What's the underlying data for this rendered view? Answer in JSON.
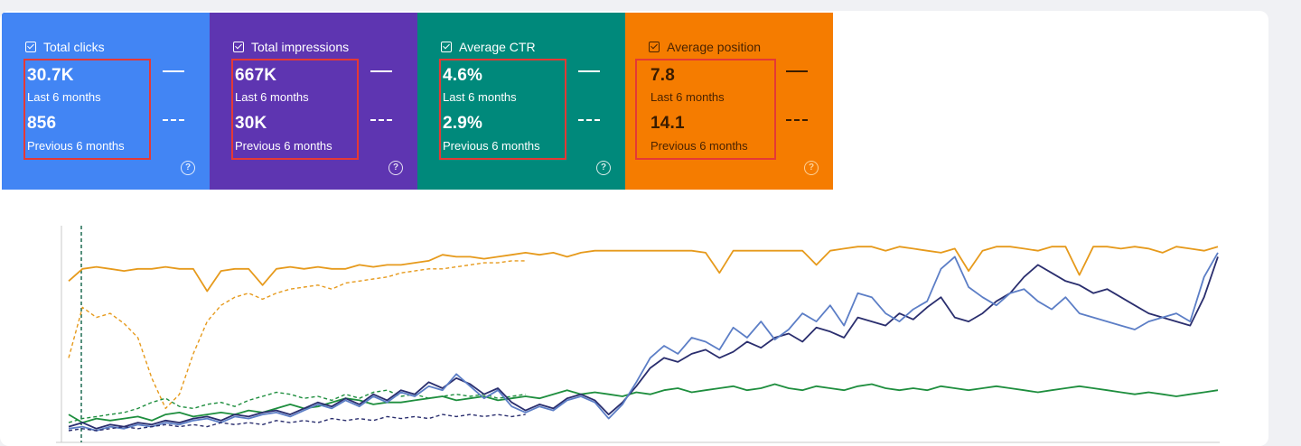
{
  "cards": [
    {
      "title": "Total clicks",
      "current_value": "30.7K",
      "current_label": "Last 6 months",
      "previous_value": "856",
      "previous_label": "Previous 6 months",
      "color": "#4285f4"
    },
    {
      "title": "Total impressions",
      "current_value": "667K",
      "current_label": "Last 6 months",
      "previous_value": "30K",
      "previous_label": "Previous 6 months",
      "color": "#5e35b1"
    },
    {
      "title": "Average CTR",
      "current_value": "4.6%",
      "current_label": "Last 6 months",
      "previous_value": "2.9%",
      "previous_label": "Previous 6 months",
      "color": "#00897b"
    },
    {
      "title": "Average position",
      "current_value": "7.8",
      "current_label": "Last 6 months",
      "previous_value": "14.1",
      "previous_label": "Previous 6 months",
      "color": "#f57c00"
    }
  ],
  "icons": {
    "checkbox": "checkbox-checked-icon",
    "help": "help-circle-icon",
    "current_line": "solid-line-icon",
    "previous_line": "dashed-line-icon"
  },
  "chart_data": {
    "type": "line",
    "series": [
      {
        "color": "#e69a1c",
        "style": "solid",
        "values": [
          78,
          84,
          85,
          84,
          83,
          84,
          84,
          85,
          84,
          84,
          73,
          83,
          84,
          84,
          76,
          84,
          85,
          84,
          85,
          84,
          84,
          86,
          85,
          86,
          86,
          87,
          88,
          91,
          90,
          90,
          89,
          90,
          91,
          92,
          91,
          92,
          90,
          92,
          93,
          93,
          93,
          93,
          93,
          93,
          93,
          93,
          92,
          82,
          93,
          93,
          93,
          93,
          93,
          93,
          86,
          93,
          94,
          95,
          95,
          93,
          95,
          94,
          93,
          92,
          94,
          83,
          93,
          95,
          95,
          94,
          93,
          95,
          95,
          81,
          95,
          95,
          94,
          95,
          94,
          92,
          95,
          94,
          93,
          95
        ]
      },
      {
        "color": "#e69a1c",
        "style": "dashed",
        "values": [
          40,
          65,
          60,
          62,
          57,
          50,
          30,
          15,
          22,
          42,
          58,
          66,
          70,
          72,
          69,
          72,
          74,
          75,
          76,
          74,
          77,
          78,
          79,
          80,
          82,
          83,
          84,
          84,
          85,
          86,
          87,
          87,
          88,
          88
        ]
      },
      {
        "color": "#1e8e3e",
        "style": "solid",
        "values": [
          12,
          8,
          10,
          9,
          10,
          11,
          9,
          12,
          13,
          11,
          12,
          13,
          12,
          14,
          13,
          15,
          17,
          15,
          16,
          18,
          20,
          19,
          17,
          18,
          18,
          19,
          20,
          21,
          19,
          20,
          21,
          19,
          20,
          21,
          20,
          22,
          24,
          22,
          23,
          22,
          21,
          23,
          22,
          24,
          25,
          23,
          24,
          25,
          26,
          24,
          25,
          27,
          25,
          24,
          26,
          25,
          24,
          26,
          27,
          25,
          24,
          25,
          24,
          26,
          25,
          24,
          25,
          26,
          25,
          24,
          23,
          24,
          25,
          26,
          25,
          24,
          23,
          22,
          23,
          22,
          21,
          22,
          23,
          24
        ]
      },
      {
        "color": "#1e8e3e",
        "style": "dashed",
        "values": [
          8,
          10,
          11,
          12,
          13,
          15,
          18,
          20,
          16,
          15,
          17,
          18,
          16,
          19,
          21,
          23,
          22,
          20,
          21,
          19,
          22,
          20,
          23,
          24,
          21,
          22,
          20,
          21,
          22,
          21,
          22,
          20,
          21,
          22
        ]
      },
      {
        "color": "#2a2e6e",
        "style": "solid",
        "values": [
          6,
          8,
          5,
          7,
          6,
          8,
          7,
          9,
          8,
          10,
          11,
          9,
          12,
          11,
          13,
          14,
          12,
          15,
          18,
          16,
          20,
          17,
          22,
          19,
          24,
          22,
          28,
          25,
          30,
          27,
          22,
          25,
          18,
          14,
          17,
          15,
          20,
          22,
          19,
          12,
          18,
          26,
          35,
          40,
          38,
          42,
          44,
          40,
          43,
          48,
          45,
          50,
          52,
          48,
          55,
          53,
          50,
          60,
          58,
          56,
          62,
          59,
          65,
          70,
          60,
          58,
          62,
          68,
          72,
          80,
          86,
          82,
          78,
          76,
          72,
          74,
          70,
          66,
          62,
          60,
          58,
          56,
          70,
          90
        ]
      },
      {
        "color": "#5c7ec6",
        "style": "solid",
        "values": [
          5,
          6,
          4,
          6,
          5,
          7,
          6,
          8,
          7,
          9,
          10,
          8,
          11,
          10,
          12,
          13,
          11,
          14,
          17,
          15,
          19,
          16,
          21,
          18,
          23,
          21,
          26,
          24,
          32,
          26,
          20,
          24,
          16,
          13,
          16,
          14,
          19,
          21,
          18,
          10,
          17,
          28,
          40,
          46,
          42,
          50,
          48,
          44,
          55,
          50,
          58,
          49,
          54,
          62,
          58,
          66,
          56,
          72,
          70,
          62,
          58,
          64,
          68,
          84,
          90,
          75,
          70,
          66,
          72,
          74,
          68,
          64,
          70,
          62,
          60,
          58,
          56,
          54,
          58,
          60,
          62,
          58,
          80,
          92
        ]
      },
      {
        "color": "#2a2e6e",
        "style": "dashed",
        "values": [
          4,
          5,
          4,
          5,
          6,
          5,
          6,
          7,
          6,
          7,
          6,
          8,
          7,
          8,
          7,
          9,
          8,
          9,
          8,
          10,
          9,
          10,
          9,
          11,
          10,
          11,
          10,
          12,
          11,
          12,
          11,
          12,
          11,
          12
        ]
      }
    ]
  }
}
